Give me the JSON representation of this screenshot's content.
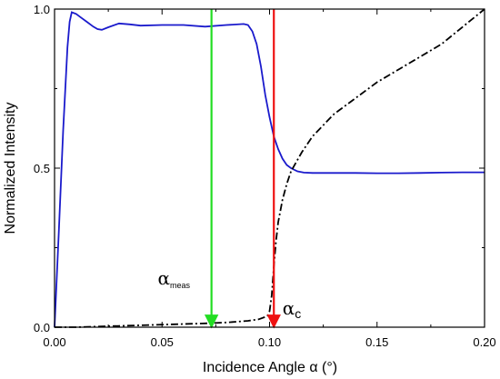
{
  "chart_data": {
    "type": "line",
    "title": "",
    "xlabel": "Incidence Angle α (°)",
    "ylabel": "Normalized Intensity",
    "xlim": [
      0.0,
      0.2
    ],
    "ylim": [
      0.0,
      1.0
    ],
    "x_ticks": [
      "0.00",
      "0.05",
      "0.10",
      "0.15",
      "0.20"
    ],
    "x_tick_values": [
      0.0,
      0.05,
      0.1,
      0.15,
      0.2
    ],
    "y_ticks": [
      "0.0",
      "0.5",
      "1.0"
    ],
    "y_tick_values": [
      0.0,
      0.5,
      1.0
    ],
    "grid": false,
    "series": [
      {
        "color": "#1a1acc",
        "style": "solid",
        "x": [
          0.0,
          0.002,
          0.004,
          0.006,
          0.007,
          0.008,
          0.01,
          0.012,
          0.015,
          0.018,
          0.02,
          0.022,
          0.025,
          0.03,
          0.035,
          0.04,
          0.05,
          0.06,
          0.07,
          0.08,
          0.088,
          0.09,
          0.092,
          0.094,
          0.096,
          0.098,
          0.1,
          0.102,
          0.104,
          0.106,
          0.108,
          0.11,
          0.113,
          0.116,
          0.12,
          0.13,
          0.14,
          0.15,
          0.16,
          0.17,
          0.18,
          0.19,
          0.2
        ],
        "y": [
          0.0,
          0.3,
          0.62,
          0.88,
          0.96,
          0.99,
          0.985,
          0.975,
          0.96,
          0.945,
          0.937,
          0.935,
          0.943,
          0.955,
          0.952,
          0.948,
          0.95,
          0.95,
          0.945,
          0.95,
          0.953,
          0.95,
          0.93,
          0.89,
          0.82,
          0.73,
          0.66,
          0.6,
          0.56,
          0.53,
          0.51,
          0.5,
          0.49,
          0.486,
          0.485,
          0.485,
          0.485,
          0.484,
          0.484,
          0.485,
          0.486,
          0.487,
          0.487
        ]
      },
      {
        "color": "#000000",
        "style": "dash-dot",
        "x": [
          0.0,
          0.01,
          0.02,
          0.03,
          0.04,
          0.05,
          0.06,
          0.07,
          0.08,
          0.09,
          0.095,
          0.099,
          0.1,
          0.101,
          0.102,
          0.103,
          0.104,
          0.106,
          0.108,
          0.11,
          0.115,
          0.12,
          0.13,
          0.14,
          0.15,
          0.16,
          0.17,
          0.18,
          0.19,
          0.2
        ],
        "y": [
          0.0,
          0.0,
          0.002,
          0.004,
          0.006,
          0.008,
          0.01,
          0.012,
          0.015,
          0.02,
          0.025,
          0.035,
          0.05,
          0.1,
          0.19,
          0.27,
          0.33,
          0.4,
          0.45,
          0.49,
          0.55,
          0.6,
          0.67,
          0.72,
          0.77,
          0.81,
          0.85,
          0.89,
          0.945,
          1.0
        ]
      }
    ],
    "annotations": [
      {
        "label": "α",
        "subscript": "meas",
        "arrow_x": 0.073,
        "arrow_y_from": 1.0,
        "arrow_y_to": 0.0,
        "color": "#22dd22",
        "text_x": 0.048,
        "text_y": 0.135
      },
      {
        "label": "α",
        "subscript": "c",
        "arrow_x": 0.102,
        "arrow_y_from": 1.0,
        "arrow_y_to": 0.0,
        "color": "#ee1111",
        "text_x": 0.106,
        "text_y": 0.04
      }
    ]
  }
}
